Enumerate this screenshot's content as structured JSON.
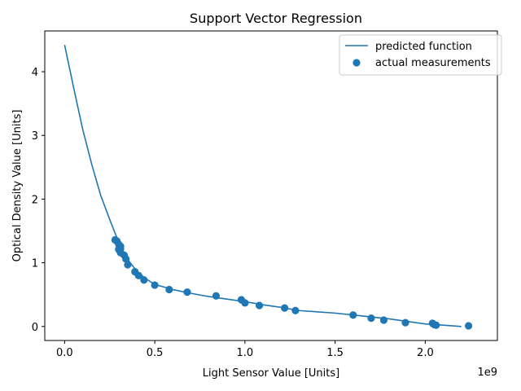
{
  "chart_data": {
    "type": "scatter",
    "title": "Support Vector Regression",
    "xlabel": "Light Sensor Value [Units]",
    "ylabel": "Optical Density Value [Units]",
    "x_offset_label": "1e9",
    "xlim": [
      -0.11,
      2.4
    ],
    "ylim": [
      -0.22,
      4.64
    ],
    "x_ticks": [
      0.0,
      0.5,
      1.0,
      1.5,
      2.0
    ],
    "x_tick_labels": [
      "0.0",
      "0.5",
      "1.0",
      "1.5",
      "2.0"
    ],
    "y_ticks": [
      0,
      1,
      2,
      3,
      4
    ],
    "y_tick_labels": [
      "0",
      "1",
      "2",
      "3",
      "4"
    ],
    "legend_position": "top-right",
    "colors": {
      "series": "#1f77b4"
    },
    "series": [
      {
        "name": "predicted function",
        "kind": "line",
        "x": [
          0.0,
          0.05,
          0.1,
          0.15,
          0.2,
          0.25,
          0.3,
          0.35,
          0.4,
          0.45,
          0.5,
          0.6,
          0.7,
          0.8,
          0.9,
          1.0,
          1.1,
          1.2,
          1.3,
          1.4,
          1.5,
          1.6,
          1.7,
          1.8,
          1.9,
          2.0,
          2.1,
          2.2
        ],
        "y": [
          4.42,
          3.75,
          3.1,
          2.55,
          2.06,
          1.68,
          1.32,
          1.05,
          0.87,
          0.75,
          0.66,
          0.58,
          0.52,
          0.47,
          0.43,
          0.39,
          0.34,
          0.3,
          0.25,
          0.23,
          0.21,
          0.18,
          0.15,
          0.12,
          0.08,
          0.04,
          0.02,
          0.0
        ]
      },
      {
        "name": "actual measurements",
        "kind": "scatter",
        "x": [
          0.28,
          0.29,
          0.3,
          0.31,
          0.31,
          0.3,
          0.31,
          0.33,
          0.34,
          0.35,
          0.39,
          0.41,
          0.44,
          0.5,
          0.58,
          0.68,
          0.84,
          0.98,
          1.0,
          1.08,
          1.22,
          1.28,
          1.6,
          1.7,
          1.77,
          1.89,
          2.04,
          2.05,
          2.06,
          2.24
        ],
        "y": [
          1.36,
          1.34,
          1.29,
          1.26,
          1.22,
          1.21,
          1.16,
          1.12,
          1.06,
          0.97,
          0.86,
          0.8,
          0.73,
          0.65,
          0.58,
          0.54,
          0.48,
          0.42,
          0.37,
          0.33,
          0.29,
          0.25,
          0.18,
          0.13,
          0.1,
          0.06,
          0.05,
          0.03,
          0.02,
          0.01
        ]
      }
    ]
  }
}
